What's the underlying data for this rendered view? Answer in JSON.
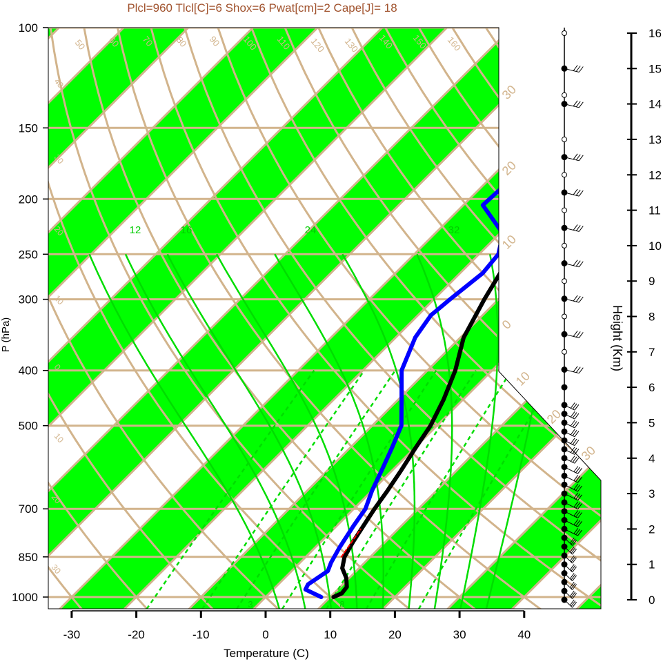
{
  "title": "Plcl=960 Tlcl[C]=6 Shox=6 Pwat[cm]=2 Cape[J]= 18",
  "colors": {
    "title": "#a0522d",
    "band": "#00ff00",
    "isobar": "#d2b48c",
    "temperature": "#000000",
    "dewpoint": "#0000ff",
    "parcel": "#ff0000",
    "moist_adiabat": "#00dd00",
    "mixing_ratio": "#00dd00"
  },
  "chart_data": {
    "type": "skew-t",
    "title": "Plcl=960 Tlcl[C]=6 Shox=6 Pwat[cm]=2 Cape[J]= 18",
    "xlabel": "Temperature (C)",
    "ylabel": "P (hPa)",
    "y2label": "Height (Km)",
    "xlim": [
      -34,
      52
    ],
    "ylim": [
      1050,
      100
    ],
    "x_ticks": [
      -30,
      -20,
      -10,
      0,
      10,
      20,
      30,
      40
    ],
    "y_ticks": [
      100,
      150,
      200,
      250,
      300,
      400,
      500,
      700,
      850,
      1000
    ],
    "height_ticks": [
      0,
      1,
      2,
      3,
      4,
      5,
      6,
      7,
      8,
      9,
      10,
      11,
      12,
      13,
      14,
      15,
      16
    ],
    "isotherm_labels": [
      "-40",
      "-30",
      "-20",
      "-10",
      "0",
      "10",
      "20",
      "30"
    ],
    "theta_labels": [
      "50",
      "60",
      "70",
      "80",
      "90",
      "100",
      "110",
      "120",
      "130",
      "140",
      "150",
      "160"
    ],
    "left_edge_labels": [
      "40",
      "30",
      "20",
      "10",
      "0",
      "10",
      "20",
      "30"
    ],
    "moist_labels": [
      "12",
      "16",
      "24",
      "32"
    ],
    "mixing_labels": [
      "3",
      "8"
    ],
    "side_labels": [
      "30",
      "20",
      "10",
      "0",
      "10",
      "20",
      "30"
    ],
    "series": [
      {
        "name": "temperature",
        "points": [
          [
            1000,
            10.5
          ],
          [
            985,
            11.2
          ],
          [
            960,
            11.0
          ],
          [
            925,
            9.5
          ],
          [
            890,
            7.4
          ],
          [
            850,
            6.0
          ],
          [
            800,
            5.0
          ],
          [
            760,
            4.3
          ],
          [
            700,
            3.2
          ],
          [
            650,
            2.4
          ],
          [
            600,
            1.4
          ],
          [
            550,
            0.2
          ],
          [
            500,
            -1.0
          ],
          [
            450,
            -3.0
          ],
          [
            400,
            -5.7
          ],
          [
            350,
            -9.5
          ],
          [
            300,
            -12.2
          ],
          [
            270,
            -13.8
          ],
          [
            250,
            -13.4
          ],
          [
            230,
            -10.5
          ],
          [
            200,
            -3.5
          ],
          [
            185,
            2.0
          ],
          [
            170,
            6.0
          ],
          [
            160,
            8.8
          ],
          [
            150,
            11.0
          ],
          [
            140,
            12.7
          ],
          [
            130,
            14.0
          ],
          [
            120,
            15.3
          ],
          [
            112,
            17.5
          ]
        ]
      },
      {
        "name": "dewpoint",
        "points": [
          [
            1000,
            8.6
          ],
          [
            970,
            5.0
          ],
          [
            950,
            4.6
          ],
          [
            900,
            5.6
          ],
          [
            870,
            4.8
          ],
          [
            850,
            4.4
          ],
          [
            820,
            3.8
          ],
          [
            750,
            2.6
          ],
          [
            700,
            1.8
          ],
          [
            650,
            0.0
          ],
          [
            600,
            -1.6
          ],
          [
            550,
            -3.4
          ],
          [
            500,
            -5.5
          ],
          [
            450,
            -9.5
          ],
          [
            400,
            -14.0
          ],
          [
            350,
            -17.0
          ],
          [
            320,
            -18.0
          ],
          [
            300,
            -17.5
          ],
          [
            270,
            -16.5
          ],
          [
            250,
            -17.0
          ],
          [
            230,
            -19.5
          ],
          [
            205,
            -27.0
          ],
          [
            180,
            -26.5
          ],
          [
            160,
            -24.5
          ],
          [
            140,
            -22.0
          ],
          [
            120,
            -18.0
          ],
          [
            112,
            -16.0
          ]
        ]
      },
      {
        "name": "parcel",
        "points": [
          [
            850,
            5.5
          ],
          [
            800,
            4.8
          ],
          [
            760,
            4.2
          ]
        ]
      }
    ],
    "wind_profile": {
      "levels_km": [
        0,
        0.25,
        0.5,
        0.75,
        1.0,
        1.25,
        1.5,
        1.75,
        2.0,
        2.25,
        2.5,
        2.75,
        3.0,
        3.25,
        3.5,
        3.75,
        4.0,
        4.25,
        4.5,
        4.75,
        5.0,
        5.25,
        5.5,
        6.0,
        6.5,
        7.0,
        7.5,
        8.0,
        8.5,
        9.0,
        9.5,
        10.0,
        10.5,
        11.0,
        11.5,
        12.0,
        12.5,
        13.0,
        14.0,
        14.25,
        15.0,
        16.0
      ]
    }
  }
}
